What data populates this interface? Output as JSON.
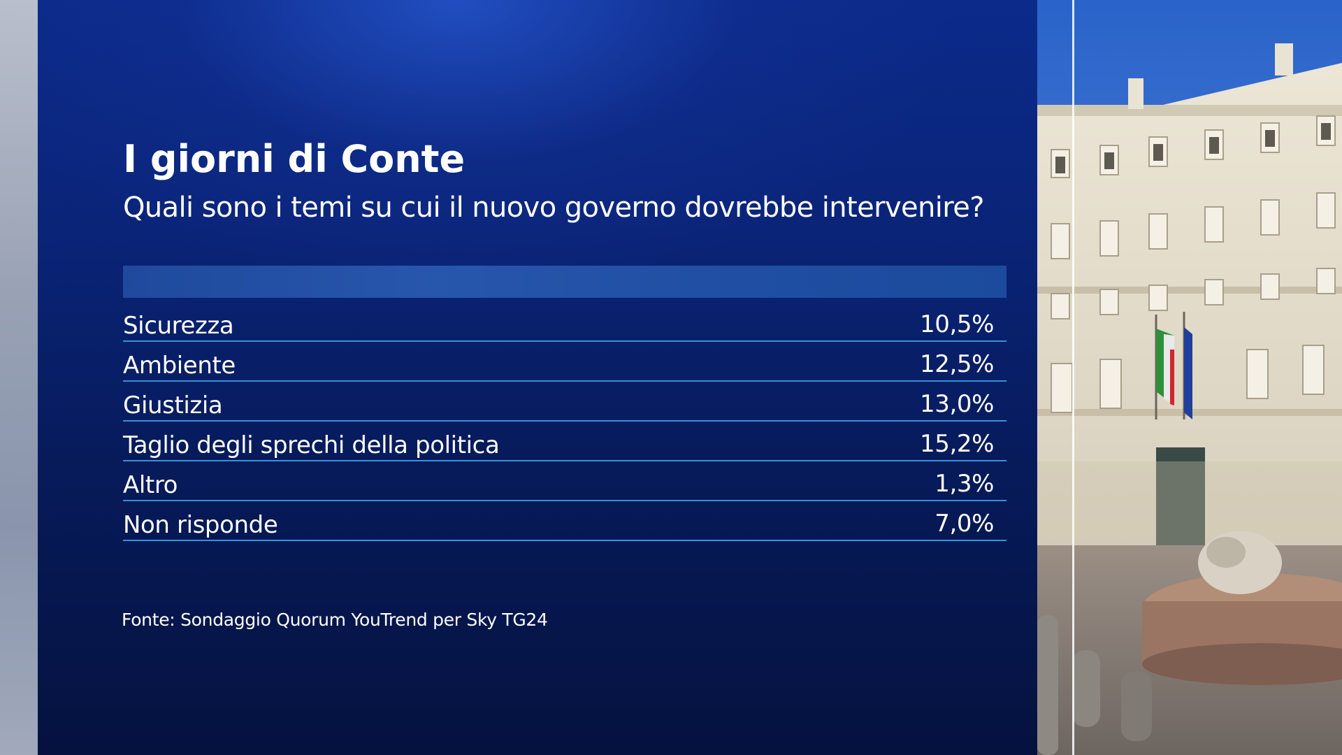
{
  "title": "I giorni di Conte",
  "subtitle": "Quali sono i temi su cui il nuovo governo dovrebbe intervenire?",
  "source": "Fonte: Sondaggio Quorum YouTrend per Sky TG24",
  "colors": {
    "panel": "#0a2478",
    "header_bar": "#2756ad",
    "row_divider": "#3b8fd6",
    "text": "#ffffff"
  },
  "chart_data": {
    "type": "table",
    "title": "I giorni di Conte",
    "subtitle": "Quali sono i temi su cui il nuovo governo dovrebbe intervenire?",
    "categories": [
      "Sicurezza",
      "Ambiente",
      "Giustizia",
      "Taglio degli sprechi della politica",
      "Altro",
      "Non risponde"
    ],
    "values": [
      10.5,
      12.5,
      13.0,
      15.2,
      1.3,
      7.0
    ],
    "value_labels": [
      "10,5%",
      "12,5%",
      "13,0%",
      "15,2%",
      "1,3%",
      "7,0%"
    ]
  },
  "photo": {
    "icon": "palazzo-chigi-photo"
  }
}
